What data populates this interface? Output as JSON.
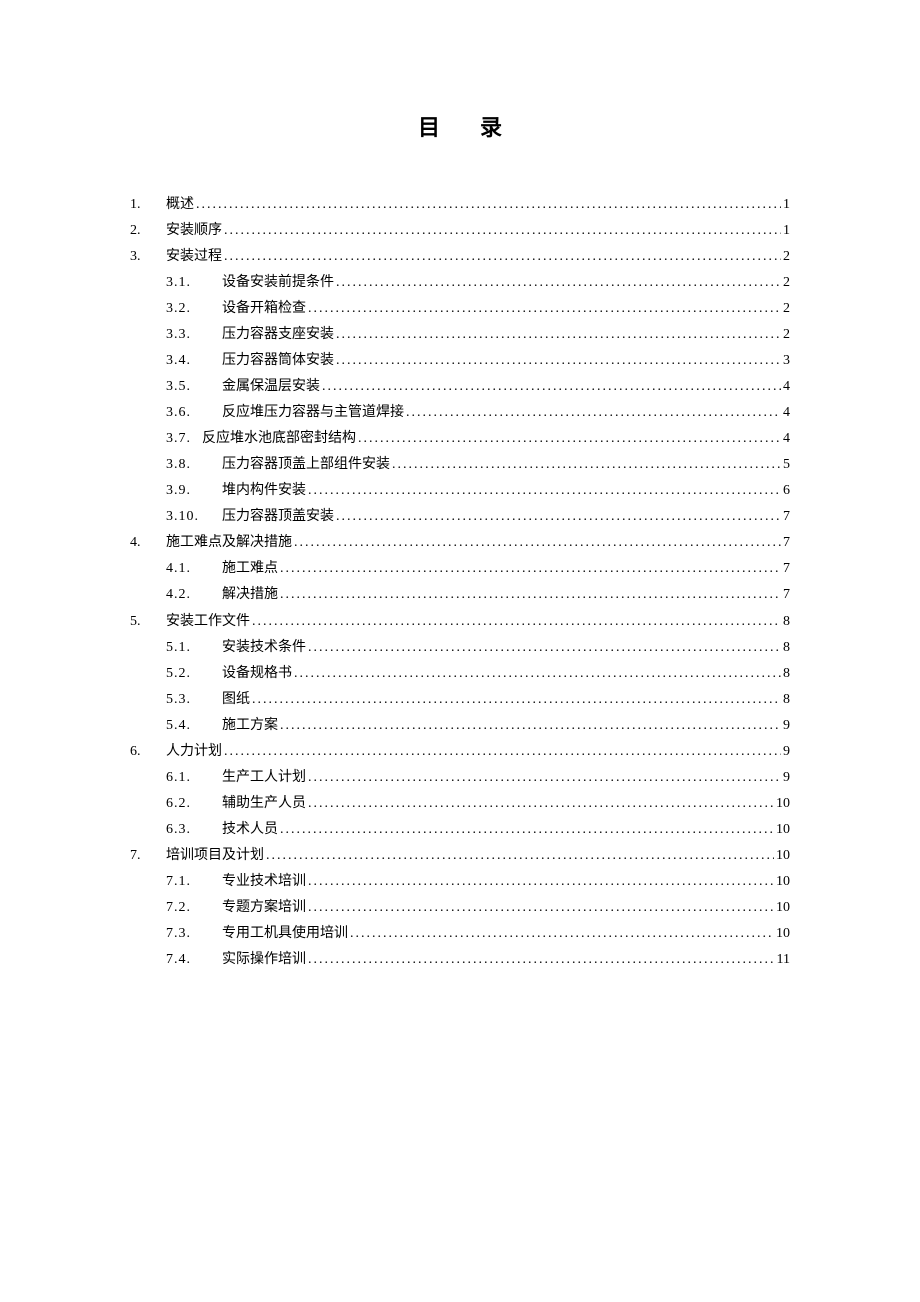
{
  "title": "目录",
  "entries": [
    {
      "level": 1,
      "num": "1.",
      "label": "概述",
      "page": "1"
    },
    {
      "level": 1,
      "num": "2.",
      "label": "安装顺序",
      "page": "1"
    },
    {
      "level": 1,
      "num": "3.",
      "label": "安装过程",
      "page": "2"
    },
    {
      "level": 2,
      "num": "3.1.",
      "label": "设备安装前提条件",
      "page": "2",
      "gap": true
    },
    {
      "level": 2,
      "num": "3.2.",
      "label": "设备开箱检查",
      "page": "2",
      "gap": true
    },
    {
      "level": 2,
      "num": "3.3.",
      "label": "压力容器支座安装",
      "page": "2",
      "gap": true
    },
    {
      "level": 2,
      "num": "3.4.",
      "label": "压力容器筒体安装",
      "page": "3",
      "gap": true
    },
    {
      "level": 2,
      "num": "3.5.",
      "label": "金属保温层安装",
      "page": "4",
      "gap": true
    },
    {
      "level": 2,
      "num": "3.6.",
      "label": "反应堆压力容器与主管道焊接",
      "page": "4",
      "gap": true
    },
    {
      "level": 2,
      "num": "3.7.",
      "label": "反应堆水池底部密封结构",
      "page": "4",
      "gap": false
    },
    {
      "level": 2,
      "num": "3.8.",
      "label": "压力容器顶盖上部组件安装",
      "page": "5",
      "gap": true
    },
    {
      "level": 2,
      "num": "3.9.",
      "label": "堆内构件安装",
      "page": "6",
      "gap": true
    },
    {
      "level": 2,
      "num": "3.10.",
      "label": "压力容器顶盖安装",
      "page": "7",
      "gap": true
    },
    {
      "level": 1,
      "num": "4.",
      "label": "施工难点及解决措施",
      "page": "7"
    },
    {
      "level": 2,
      "num": "4.1.",
      "label": "施工难点",
      "page": "7",
      "gap": true
    },
    {
      "level": 2,
      "num": "4.2.",
      "label": "解决措施",
      "page": "7",
      "gap": true
    },
    {
      "level": 1,
      "num": "5.",
      "label": "安装工作文件",
      "page": "8"
    },
    {
      "level": 2,
      "num": "5.1.",
      "label": "安装技术条件",
      "page": "8",
      "gap": true
    },
    {
      "level": 2,
      "num": "5.2.",
      "label": "设备规格书",
      "page": "8",
      "gap": true
    },
    {
      "level": 2,
      "num": "5.3.",
      "label": "图纸",
      "page": "8",
      "gap": true
    },
    {
      "level": 2,
      "num": "5.4.",
      "label": "施工方案",
      "page": "9",
      "gap": true
    },
    {
      "level": 1,
      "num": "6.",
      "label": "人力计划",
      "page": "9"
    },
    {
      "level": 2,
      "num": "6.1.",
      "label": "生产工人计划",
      "page": "9",
      "gap": true
    },
    {
      "level": 2,
      "num": "6.2.",
      "label": "辅助生产人员",
      "page": "10",
      "gap": true
    },
    {
      "level": 2,
      "num": "6.3.",
      "label": "技术人员",
      "page": "10",
      "gap": true
    },
    {
      "level": 1,
      "num": "7.",
      "label": "培训项目及计划",
      "page": "10"
    },
    {
      "level": 2,
      "num": "7.1.",
      "label": "专业技术培训",
      "page": "10",
      "gap": true
    },
    {
      "level": 2,
      "num": "7.2.",
      "label": "专题方案培训",
      "page": "10",
      "gap": true
    },
    {
      "level": 2,
      "num": "7.3.",
      "label": "专用工机具使用培训",
      "page": "10",
      "gap": true
    },
    {
      "level": 2,
      "num": "7.4.",
      "label": "实际操作培训",
      "page": "11",
      "gap": true
    }
  ]
}
